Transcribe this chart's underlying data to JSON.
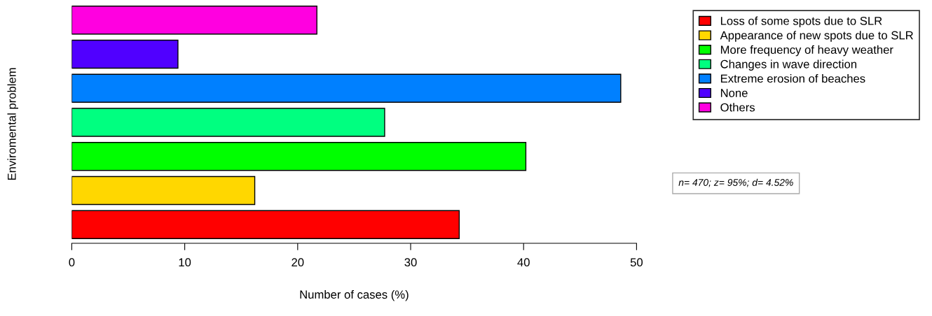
{
  "chart_data": {
    "type": "bar",
    "orientation": "horizontal",
    "stacked": true,
    "xlabel": "Number of cases (%)",
    "ylabel": "Enviromental problem",
    "categories": [
      null,
      null,
      null,
      null,
      null,
      null,
      null
    ],
    "series": [
      {
        "name": "Loss of some spots due to SLR",
        "color": "#ff0000",
        "values": [
          0,
          0,
          0,
          0,
          0,
          0,
          34.3
        ]
      },
      {
        "name": "Appearance of new spots due to SLR",
        "color": "#ffd700",
        "values": [
          0,
          0,
          0,
          0,
          0,
          16.2,
          0
        ]
      },
      {
        "name": "More frequency of heavy weather",
        "color": "#00ff00",
        "values": [
          0,
          0,
          0,
          0,
          40.2,
          0,
          0
        ]
      },
      {
        "name": "Changes in wave direction",
        "color": "#00ff80",
        "values": [
          0,
          0,
          0,
          27.7,
          0,
          0,
          0
        ]
      },
      {
        "name": "Extreme erosion of beaches",
        "color": "#0080ff",
        "values": [
          0,
          0,
          48.6,
          0,
          0,
          0,
          0
        ]
      },
      {
        "name": "None",
        "color": "#5000ff",
        "values": [
          0,
          9.4,
          0,
          0,
          0,
          0,
          0
        ]
      },
      {
        "name": "Others",
        "color": "#ff00e0",
        "values": [
          21.7,
          0,
          0,
          0,
          0,
          0,
          0
        ]
      }
    ],
    "xlim": [
      0,
      50
    ],
    "xticks": [
      0,
      10,
      20,
      30,
      40,
      50
    ],
    "tick_labels": "x",
    "grid": false,
    "legend": "top right",
    "annotations": [
      "n= 470; z= 95%; d= 4.52%"
    ]
  }
}
